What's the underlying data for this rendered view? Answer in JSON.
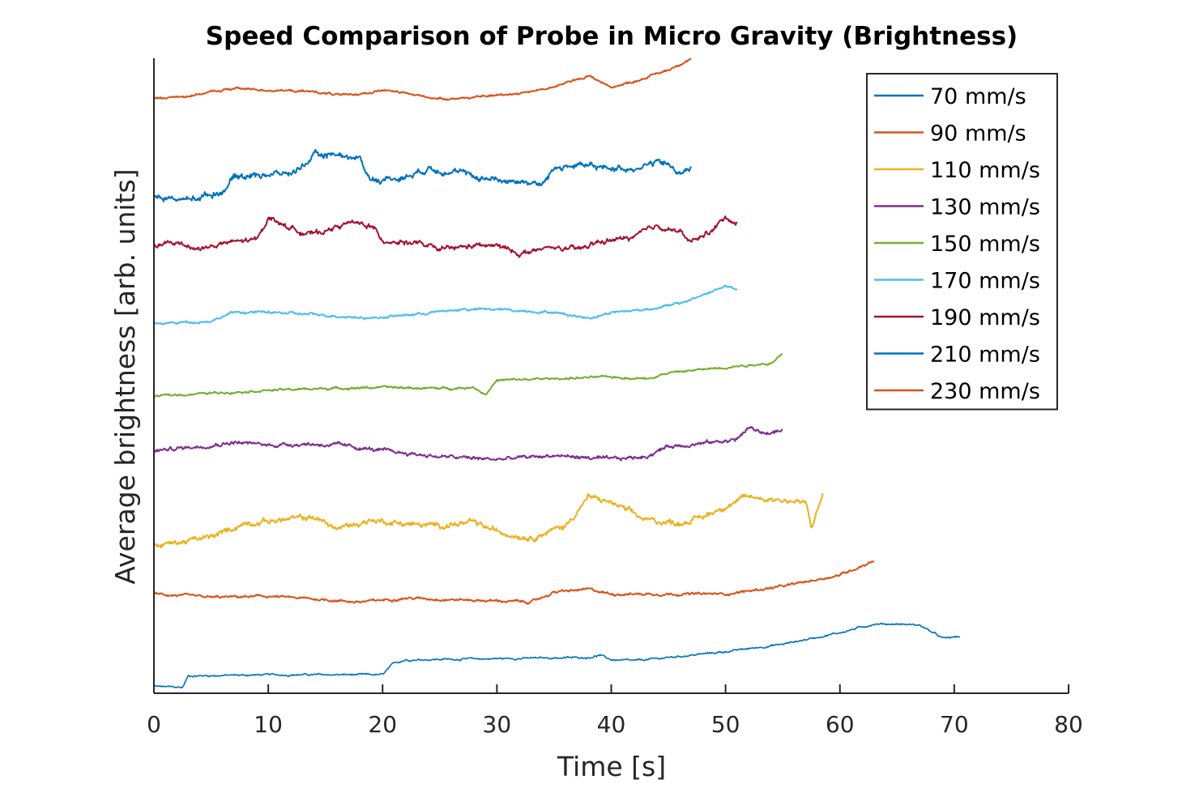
{
  "chart_data": {
    "type": "line",
    "title": "Speed Comparison of Probe in Micro Gravity (Brightness)",
    "xlabel": "Time [s]",
    "ylabel": "Average brightness [arb. units]",
    "xlim": [
      0,
      80
    ],
    "ylim": [
      0,
      11
    ],
    "xticks": [
      0,
      10,
      20,
      30,
      40,
      50,
      60,
      70,
      80
    ],
    "yticks_shown": false,
    "grid": false,
    "legend_position": "top-right",
    "series": [
      {
        "name": "70 mm/s",
        "color": "#0072BD",
        "noise": 0.03,
        "x": [
          0,
          2.5,
          3,
          10,
          20,
          21,
          22,
          30,
          38,
          39,
          40,
          42,
          45,
          50,
          55,
          60,
          63,
          65,
          67,
          69,
          70.5
        ],
        "y": [
          0.12,
          0.1,
          0.3,
          0.32,
          0.32,
          0.52,
          0.58,
          0.6,
          0.62,
          0.66,
          0.58,
          0.56,
          0.62,
          0.72,
          0.85,
          1.05,
          1.2,
          1.2,
          1.18,
          0.95,
          0.98
        ]
      },
      {
        "name": "90 mm/s",
        "color": "#D95319",
        "noise": 0.04,
        "x": [
          0,
          5,
          10,
          15,
          18,
          22,
          30,
          33,
          35,
          38,
          40,
          45,
          50,
          55,
          60,
          63
        ],
        "y": [
          1.72,
          1.66,
          1.68,
          1.62,
          1.58,
          1.65,
          1.6,
          1.58,
          1.75,
          1.8,
          1.72,
          1.72,
          1.72,
          1.85,
          2.05,
          2.3
        ]
      },
      {
        "name": "110 mm/s",
        "color": "#EDB120",
        "noise": 0.09,
        "x": [
          0,
          5,
          8,
          14,
          16,
          19,
          24,
          28,
          30,
          33,
          36,
          38,
          40,
          43,
          46,
          48,
          50,
          52,
          55,
          57,
          57.5,
          58.5
        ],
        "y": [
          2.55,
          2.7,
          2.95,
          3.05,
          2.85,
          3.0,
          2.9,
          2.95,
          2.8,
          2.7,
          2.9,
          3.4,
          3.3,
          3.0,
          2.95,
          3.05,
          3.25,
          3.4,
          3.35,
          3.3,
          2.85,
          3.45
        ]
      },
      {
        "name": "130 mm/s",
        "color": "#7E2F8E",
        "noise": 0.06,
        "x": [
          0,
          4,
          7,
          10,
          13,
          16,
          20,
          25,
          30,
          35,
          40,
          43,
          45,
          49,
          51,
          52,
          53.5,
          55
        ],
        "y": [
          4.2,
          4.28,
          4.35,
          4.3,
          4.32,
          4.3,
          4.2,
          4.1,
          4.05,
          4.12,
          4.05,
          4.1,
          4.28,
          4.35,
          4.4,
          4.6,
          4.5,
          4.55
        ]
      },
      {
        "name": "150 mm/s",
        "color": "#77AC30",
        "noise": 0.035,
        "x": [
          0,
          5,
          10,
          15,
          20,
          25,
          28,
          29,
          30,
          35,
          40,
          43,
          45,
          50,
          54,
          55
        ],
        "y": [
          5.15,
          5.2,
          5.25,
          5.28,
          5.3,
          5.28,
          5.3,
          5.18,
          5.42,
          5.45,
          5.48,
          5.45,
          5.55,
          5.65,
          5.72,
          5.88
        ]
      },
      {
        "name": "170 mm/s",
        "color": "#4DBEEE",
        "noise": 0.04,
        "x": [
          0,
          5,
          7,
          10,
          15,
          19,
          22,
          27,
          30,
          35,
          38,
          40,
          43,
          46,
          48,
          50,
          51
        ],
        "y": [
          6.4,
          6.45,
          6.6,
          6.6,
          6.55,
          6.5,
          6.55,
          6.65,
          6.65,
          6.6,
          6.5,
          6.6,
          6.65,
          6.75,
          6.9,
          7.05,
          7.0
        ]
      },
      {
        "name": "190 mm/s",
        "color": "#A2142F",
        "noise": 0.08,
        "x": [
          0,
          2,
          4,
          7,
          9,
          10,
          12,
          14,
          17,
          19,
          20,
          23,
          25,
          28,
          30,
          32,
          35,
          37,
          39,
          42,
          44,
          46,
          47,
          49,
          50,
          51
        ],
        "y": [
          7.75,
          7.8,
          7.7,
          7.82,
          7.85,
          8.25,
          8.05,
          7.95,
          8.15,
          8.1,
          7.85,
          7.8,
          7.68,
          7.75,
          7.75,
          7.62,
          7.72,
          7.68,
          7.82,
          7.9,
          8.1,
          8.0,
          7.8,
          8.05,
          8.25,
          8.15
        ]
      },
      {
        "name": "210 mm/s",
        "color": "#0072BD",
        "noise": 0.1,
        "x": [
          0,
          3,
          6,
          7,
          10,
          12,
          14,
          16,
          18,
          19,
          20,
          22,
          24,
          26,
          28,
          30,
          33,
          34,
          35,
          37,
          39,
          42,
          44,
          45,
          46,
          47
        ],
        "y": [
          8.6,
          8.55,
          8.7,
          8.95,
          9.0,
          9.0,
          9.3,
          9.35,
          9.25,
          8.9,
          8.9,
          8.95,
          9.1,
          9.05,
          8.95,
          8.9,
          8.85,
          8.8,
          9.1,
          9.15,
          9.1,
          9.1,
          9.2,
          9.15,
          9.0,
          9.1
        ]
      },
      {
        "name": "230 mm/s",
        "color": "#D95319",
        "noise": 0.035,
        "x": [
          0,
          3,
          7,
          10,
          14,
          17,
          20,
          25,
          28,
          32,
          35,
          38,
          40,
          42,
          45,
          47
        ],
        "y": [
          10.3,
          10.35,
          10.48,
          10.45,
          10.42,
          10.35,
          10.45,
          10.3,
          10.32,
          10.4,
          10.5,
          10.7,
          10.5,
          10.6,
          10.8,
          11.0
        ]
      }
    ]
  }
}
